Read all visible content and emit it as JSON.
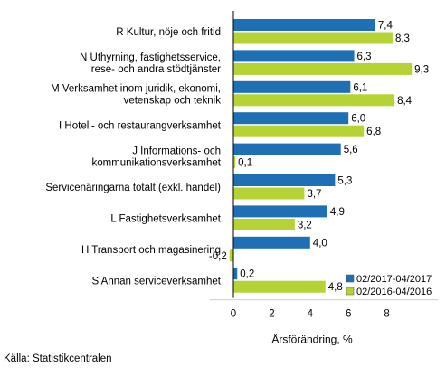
{
  "chart_data": {
    "type": "bar",
    "orientation": "horizontal",
    "categories": [
      [
        "R Kultur, nöje och fritid"
      ],
      [
        "N Uthyrning, fastighetsservice,",
        "rese- och andra stödtjänster"
      ],
      [
        "M Verksamhet inom juridik, ekonomi,",
        "vetenskap och teknik"
      ],
      [
        "I Hotell- och restaurangverksamhet"
      ],
      [
        "J Informations- och",
        "kommunikationsverksamhet"
      ],
      [
        "Servicenäringarna totalt (exkl. handel)"
      ],
      [
        "L Fastighetsverksamhet"
      ],
      [
        "H Transport och magasinering"
      ],
      [
        "S Annan serviceverksamhet"
      ]
    ],
    "series": [
      {
        "name": "02/2017-04/2017",
        "color": "#1f6fb5",
        "values": [
          7.4,
          6.3,
          6.1,
          6.0,
          5.6,
          5.3,
          4.9,
          4.0,
          0.2
        ],
        "labels": [
          "7,4",
          "6,3",
          "6,1",
          "6,0",
          "5,6",
          "5,3",
          "4,9",
          "4,0",
          "0,2"
        ]
      },
      {
        "name": "02/2016-04/2016",
        "color": "#b5d334",
        "values": [
          8.3,
          9.3,
          8.4,
          6.8,
          0.1,
          3.7,
          3.2,
          -0.2,
          4.8
        ],
        "labels": [
          "8,3",
          "9,3",
          "8,4",
          "6,8",
          "0,1",
          "3,7",
          "3,2",
          "-0,2",
          "4,8"
        ]
      }
    ],
    "xticks": [
      0,
      2,
      4,
      6,
      8
    ],
    "xlim": [
      -1.3,
      10.8
    ],
    "xlabel": "Årsförändring, %",
    "legend": "bottom-right",
    "grid": false
  },
  "source": "Källa: Statistikcentralen"
}
